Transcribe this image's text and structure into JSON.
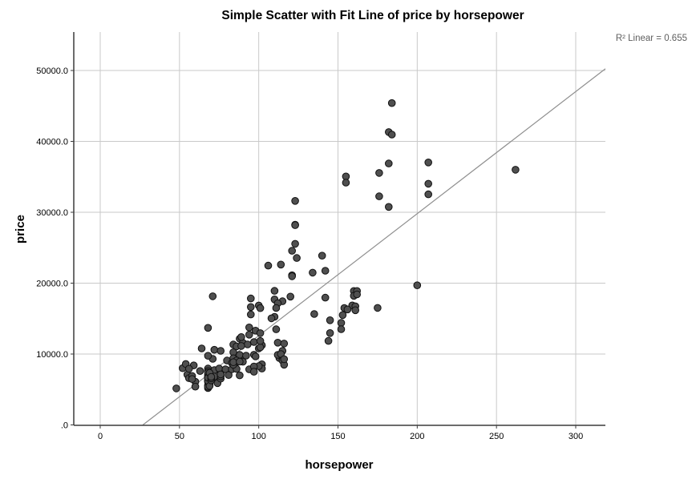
{
  "chart_data": {
    "type": "scatter",
    "title": "Simple Scatter with Fit Line of price by horsepower",
    "xlabel": "horsepower",
    "ylabel": "price",
    "annotation": "R² Linear = 0.655",
    "r_squared": 0.655,
    "xlim": [
      -16.7,
      318.7
    ],
    "ylim": [
      0,
      55400
    ],
    "x_ticks": [
      0,
      50,
      100,
      150,
      200,
      250,
      300
    ],
    "x_tick_labels": [
      "0",
      "50",
      "100",
      "150",
      "200",
      "250",
      "300"
    ],
    "y_ticks": [
      0,
      10000,
      20000,
      30000,
      40000,
      50000
    ],
    "y_tick_labels": [
      ".0",
      "10000.0",
      "20000.0",
      "30000.0",
      "40000.0",
      "50000.0"
    ],
    "grid": true,
    "legend": "none",
    "fit_line": {
      "slope": 172.18,
      "intercept": -4630
    },
    "points": [
      [
        184,
        45400
      ],
      [
        182,
        41315
      ],
      [
        184,
        40960
      ],
      [
        182,
        36880
      ],
      [
        207,
        37028
      ],
      [
        207,
        34028
      ],
      [
        207,
        32528
      ],
      [
        176,
        35550
      ],
      [
        176,
        32250
      ],
      [
        182,
        30760
      ],
      [
        262,
        36000
      ],
      [
        155,
        35056
      ],
      [
        155,
        34184
      ],
      [
        123,
        31600
      ],
      [
        123,
        28248
      ],
      [
        123,
        28176
      ],
      [
        123,
        25552
      ],
      [
        121,
        24565
      ],
      [
        140,
        23875
      ],
      [
        124,
        23550
      ],
      [
        106,
        22470
      ],
      [
        114,
        22625
      ],
      [
        134,
        21485
      ],
      [
        142,
        21750
      ],
      [
        121,
        21105
      ],
      [
        121,
        20970
      ],
      [
        200,
        19699
      ],
      [
        160,
        18890
      ],
      [
        162,
        18890
      ],
      [
        160,
        18210
      ],
      [
        162,
        18420
      ],
      [
        110,
        18920
      ],
      [
        71,
        18150
      ],
      [
        110,
        17710
      ],
      [
        115,
        17450
      ],
      [
        120,
        18100
      ],
      [
        175,
        16503
      ],
      [
        159,
        16860
      ],
      [
        161,
        16740
      ],
      [
        161,
        16180
      ],
      [
        154,
        16500
      ],
      [
        156,
        16290
      ],
      [
        153,
        15500
      ],
      [
        112,
        17160
      ],
      [
        111,
        16500
      ],
      [
        110,
        15250
      ],
      [
        108,
        15040
      ],
      [
        142,
        17950
      ],
      [
        135,
        15645
      ],
      [
        95,
        17840
      ],
      [
        95,
        16630
      ],
      [
        100,
        16845
      ],
      [
        95,
        15580
      ],
      [
        101,
        16480
      ],
      [
        68,
        13700
      ],
      [
        111,
        13495
      ],
      [
        152,
        14400
      ],
      [
        152,
        13499
      ],
      [
        145,
        14770
      ],
      [
        145,
        12964
      ],
      [
        144,
        11850
      ],
      [
        88,
        12160
      ],
      [
        94,
        13750
      ],
      [
        98,
        13295
      ],
      [
        94,
        12730
      ],
      [
        101,
        12945
      ],
      [
        112,
        11600
      ],
      [
        116,
        11480
      ],
      [
        115,
        10450
      ],
      [
        113,
        9430
      ],
      [
        115,
        9320
      ],
      [
        64,
        10795
      ],
      [
        72,
        10600
      ],
      [
        84,
        11350
      ],
      [
        86,
        11090
      ],
      [
        90,
        11590
      ],
      [
        93,
        11360
      ],
      [
        97,
        11700
      ],
      [
        100,
        10795
      ],
      [
        102,
        11245
      ],
      [
        89,
        12390
      ],
      [
        89,
        11140
      ],
      [
        84,
        10245
      ],
      [
        89,
        9430
      ],
      [
        80,
        9090
      ],
      [
        71,
        9320
      ],
      [
        68,
        9750
      ],
      [
        76,
        10450
      ],
      [
        52,
        7995
      ],
      [
        54,
        8600
      ],
      [
        59,
        8400
      ],
      [
        48,
        5151
      ],
      [
        55,
        7099
      ],
      [
        56,
        6600
      ],
      [
        56,
        7920
      ],
      [
        58,
        6900
      ],
      [
        60,
        6100
      ],
      [
        60,
        5399
      ],
      [
        63,
        7600
      ],
      [
        68,
        7957
      ],
      [
        68,
        7045
      ],
      [
        69,
        6530
      ],
      [
        69,
        6250
      ],
      [
        69,
        5680
      ],
      [
        72,
        7730
      ],
      [
        72,
        6820
      ],
      [
        74,
        5900
      ],
      [
        76,
        7295
      ],
      [
        76,
        6530
      ],
      [
        75,
        7950
      ],
      [
        79,
        7850
      ],
      [
        81,
        7045
      ],
      [
        94,
        7840
      ],
      [
        83,
        8750
      ],
      [
        83,
        7850
      ],
      [
        84,
        9400
      ],
      [
        88,
        9890
      ],
      [
        88,
        6989
      ],
      [
        86,
        7895
      ],
      [
        90,
        8916
      ],
      [
        92,
        9770
      ],
      [
        97,
        9900
      ],
      [
        98,
        9660
      ],
      [
        102,
        8558
      ],
      [
        102,
        7950
      ],
      [
        100,
        8295
      ],
      [
        112,
        9890
      ],
      [
        114,
        9995
      ],
      [
        115,
        9090
      ],
      [
        116,
        8499
      ],
      [
        68,
        5572
      ],
      [
        68,
        6377
      ],
      [
        68,
        6229
      ],
      [
        68,
        6692
      ],
      [
        68,
        7609
      ],
      [
        68,
        5195
      ],
      [
        68,
        6095
      ],
      [
        68,
        6795
      ],
      [
        68,
        6695
      ],
      [
        68,
        7395
      ],
      [
        68,
        5389
      ],
      [
        68,
        6189
      ],
      [
        68,
        6669
      ],
      [
        69,
        5499
      ],
      [
        69,
        7299
      ],
      [
        69,
        7349
      ],
      [
        70,
        6295
      ],
      [
        70,
        6575
      ],
      [
        70,
        6785
      ],
      [
        76,
        6855
      ],
      [
        76,
        7129
      ],
      [
        58,
        6479
      ],
      [
        86,
        8845
      ],
      [
        86,
        9095
      ],
      [
        101,
        10945
      ],
      [
        101,
        11845
      ],
      [
        84,
        8495
      ],
      [
        84,
        8845
      ],
      [
        88,
        8921
      ],
      [
        97,
        8249
      ],
      [
        97,
        7499
      ],
      [
        116,
        9279
      ]
    ]
  },
  "styles": {
    "background": "#ffffff",
    "point_fill": "#4f4f4f",
    "point_stroke": "#111111",
    "grid_color": "#c9c9c9",
    "axis_color": "#3c3c3c",
    "tick_label_color": "#000000",
    "title_color": "#000000",
    "fit_line_color": "#8f8f8f",
    "annotation_color": "#5f5f5f"
  },
  "geometry_note": "panel left 92, right 755, top 40, bottom 531"
}
